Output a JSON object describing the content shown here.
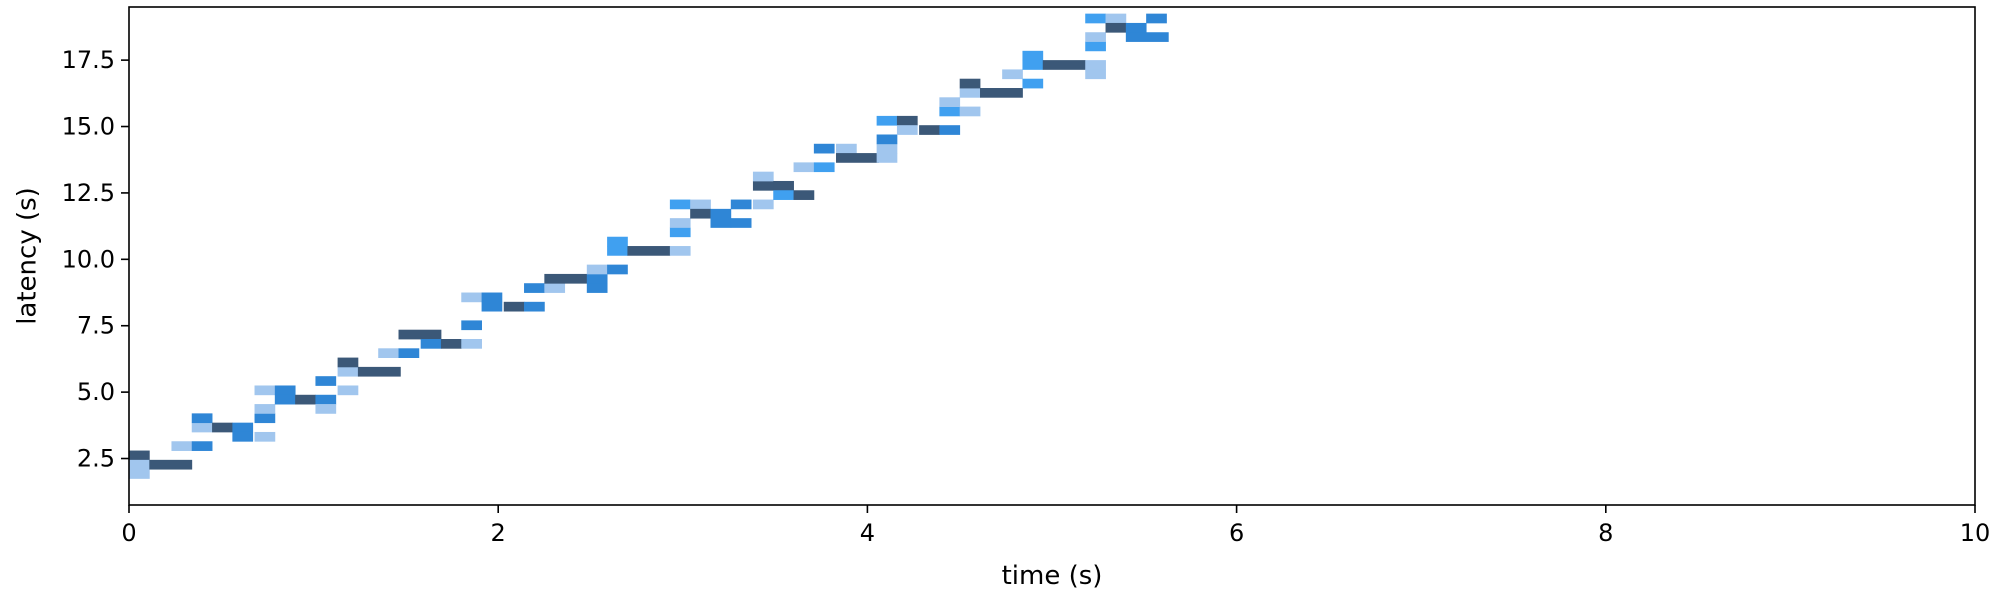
{
  "chart_data": {
    "type": "heatmap",
    "title": "",
    "xlabel": "time (s)",
    "ylabel": "latency (s)",
    "xlim": [
      0,
      10
    ],
    "ylim": [
      0.75,
      19.5
    ],
    "x_ticks": [
      {
        "value": 0,
        "label": "0"
      },
      {
        "value": 2,
        "label": "2"
      },
      {
        "value": 4,
        "label": "4"
      },
      {
        "value": 6,
        "label": "6"
      },
      {
        "value": 8,
        "label": "8"
      },
      {
        "value": 10,
        "label": "10"
      }
    ],
    "y_ticks": [
      {
        "value": 2.5,
        "label": "2.5"
      },
      {
        "value": 5.0,
        "label": "5.0"
      },
      {
        "value": 7.5,
        "label": "7.5"
      },
      {
        "value": 10.0,
        "label": "10.0"
      },
      {
        "value": 12.5,
        "label": "12.5"
      },
      {
        "value": 15.0,
        "label": "15.0"
      },
      {
        "value": 17.5,
        "label": "17.5"
      }
    ],
    "grid": false,
    "legend": "none",
    "bin_width_s": 0.11,
    "bin_height_s": 0.35,
    "colors": {
      "light": "#a1c6ee",
      "medium": "#40a0f0",
      "strong": "#2f86d6",
      "dark": "#3b5878"
    },
    "cells": [
      {
        "x": 0.0,
        "y": 2.45,
        "w": 0.11,
        "c": "dark"
      },
      {
        "x": 0.0,
        "y": 2.1,
        "w": 0.11,
        "c": "light"
      },
      {
        "x": 0.0,
        "y": 1.75,
        "w": 0.11,
        "c": "light"
      },
      {
        "x": 0.11,
        "y": 2.1,
        "w": 0.23,
        "c": "dark"
      },
      {
        "x": 0.23,
        "y": 2.8,
        "w": 0.11,
        "c": "light"
      },
      {
        "x": 0.34,
        "y": 2.8,
        "w": 0.11,
        "c": "strong"
      },
      {
        "x": 0.34,
        "y": 3.5,
        "w": 0.11,
        "c": "light"
      },
      {
        "x": 0.34,
        "y": 3.85,
        "w": 0.11,
        "c": "strong"
      },
      {
        "x": 0.45,
        "y": 3.5,
        "w": 0.11,
        "c": "dark"
      },
      {
        "x": 0.56,
        "y": 3.5,
        "w": 0.11,
        "c": "strong"
      },
      {
        "x": 0.56,
        "y": 3.15,
        "w": 0.11,
        "c": "strong"
      },
      {
        "x": 0.68,
        "y": 3.15,
        "w": 0.11,
        "c": "light"
      },
      {
        "x": 0.68,
        "y": 3.85,
        "w": 0.11,
        "c": "strong"
      },
      {
        "x": 0.68,
        "y": 4.2,
        "w": 0.11,
        "c": "light"
      },
      {
        "x": 0.68,
        "y": 4.9,
        "w": 0.11,
        "c": "light"
      },
      {
        "x": 0.79,
        "y": 4.9,
        "w": 0.11,
        "c": "strong"
      },
      {
        "x": 0.79,
        "y": 4.55,
        "w": 0.11,
        "c": "strong"
      },
      {
        "x": 0.9,
        "y": 4.55,
        "w": 0.11,
        "c": "dark"
      },
      {
        "x": 1.01,
        "y": 4.55,
        "w": 0.11,
        "c": "strong"
      },
      {
        "x": 1.01,
        "y": 4.2,
        "w": 0.11,
        "c": "light"
      },
      {
        "x": 1.01,
        "y": 5.25,
        "w": 0.11,
        "c": "strong"
      },
      {
        "x": 1.13,
        "y": 4.9,
        "w": 0.11,
        "c": "light"
      },
      {
        "x": 1.13,
        "y": 5.6,
        "w": 0.11,
        "c": "light"
      },
      {
        "x": 1.13,
        "y": 5.95,
        "w": 0.11,
        "c": "dark"
      },
      {
        "x": 1.24,
        "y": 5.6,
        "w": 0.23,
        "c": "dark"
      },
      {
        "x": 1.35,
        "y": 6.3,
        "w": 0.11,
        "c": "light"
      },
      {
        "x": 1.46,
        "y": 6.3,
        "w": 0.11,
        "c": "strong"
      },
      {
        "x": 1.46,
        "y": 7.0,
        "w": 0.23,
        "c": "dark"
      },
      {
        "x": 1.58,
        "y": 6.65,
        "w": 0.11,
        "c": "strong"
      },
      {
        "x": 1.69,
        "y": 6.65,
        "w": 0.11,
        "c": "dark"
      },
      {
        "x": 1.8,
        "y": 6.65,
        "w": 0.11,
        "c": "light"
      },
      {
        "x": 1.8,
        "y": 7.35,
        "w": 0.11,
        "c": "strong"
      },
      {
        "x": 1.8,
        "y": 8.4,
        "w": 0.11,
        "c": "light"
      },
      {
        "x": 1.91,
        "y": 8.4,
        "w": 0.11,
        "c": "strong"
      },
      {
        "x": 1.91,
        "y": 8.05,
        "w": 0.11,
        "c": "strong"
      },
      {
        "x": 2.03,
        "y": 8.05,
        "w": 0.11,
        "c": "dark"
      },
      {
        "x": 2.14,
        "y": 8.05,
        "w": 0.11,
        "c": "strong"
      },
      {
        "x": 2.14,
        "y": 8.75,
        "w": 0.11,
        "c": "strong"
      },
      {
        "x": 2.25,
        "y": 8.75,
        "w": 0.11,
        "c": "light"
      },
      {
        "x": 2.25,
        "y": 9.1,
        "w": 0.23,
        "c": "dark"
      },
      {
        "x": 2.48,
        "y": 8.75,
        "w": 0.11,
        "c": "strong"
      },
      {
        "x": 2.48,
        "y": 9.1,
        "w": 0.11,
        "c": "strong"
      },
      {
        "x": 2.48,
        "y": 9.45,
        "w": 0.11,
        "c": "light"
      },
      {
        "x": 2.59,
        "y": 9.45,
        "w": 0.11,
        "c": "strong"
      },
      {
        "x": 2.59,
        "y": 10.15,
        "w": 0.11,
        "c": "medium"
      },
      {
        "x": 2.59,
        "y": 10.5,
        "w": 0.11,
        "c": "medium"
      },
      {
        "x": 2.7,
        "y": 10.15,
        "w": 0.23,
        "c": "dark"
      },
      {
        "x": 2.93,
        "y": 10.15,
        "w": 0.11,
        "c": "light"
      },
      {
        "x": 2.93,
        "y": 10.85,
        "w": 0.11,
        "c": "medium"
      },
      {
        "x": 2.93,
        "y": 11.2,
        "w": 0.11,
        "c": "light"
      },
      {
        "x": 2.93,
        "y": 11.9,
        "w": 0.11,
        "c": "medium"
      },
      {
        "x": 3.04,
        "y": 11.9,
        "w": 0.11,
        "c": "light"
      },
      {
        "x": 3.04,
        "y": 11.55,
        "w": 0.11,
        "c": "dark"
      },
      {
        "x": 3.15,
        "y": 11.55,
        "w": 0.11,
        "c": "strong"
      },
      {
        "x": 3.15,
        "y": 11.2,
        "w": 0.11,
        "c": "strong"
      },
      {
        "x": 3.26,
        "y": 11.2,
        "w": 0.11,
        "c": "strong"
      },
      {
        "x": 3.26,
        "y": 11.9,
        "w": 0.11,
        "c": "strong"
      },
      {
        "x": 3.38,
        "y": 11.9,
        "w": 0.11,
        "c": "light"
      },
      {
        "x": 3.38,
        "y": 12.6,
        "w": 0.11,
        "c": "dark"
      },
      {
        "x": 3.38,
        "y": 12.95,
        "w": 0.11,
        "c": "light"
      },
      {
        "x": 3.49,
        "y": 12.6,
        "w": 0.11,
        "c": "dark"
      },
      {
        "x": 3.49,
        "y": 12.25,
        "w": 0.11,
        "c": "medium"
      },
      {
        "x": 3.6,
        "y": 12.25,
        "w": 0.11,
        "c": "dark"
      },
      {
        "x": 3.6,
        "y": 13.3,
        "w": 0.11,
        "c": "light"
      },
      {
        "x": 3.71,
        "y": 13.3,
        "w": 0.11,
        "c": "medium"
      },
      {
        "x": 3.71,
        "y": 14.0,
        "w": 0.11,
        "c": "strong"
      },
      {
        "x": 3.83,
        "y": 14.0,
        "w": 0.11,
        "c": "light"
      },
      {
        "x": 3.83,
        "y": 13.65,
        "w": 0.23,
        "c": "dark"
      },
      {
        "x": 4.05,
        "y": 13.65,
        "w": 0.11,
        "c": "light"
      },
      {
        "x": 4.05,
        "y": 14.0,
        "w": 0.11,
        "c": "light"
      },
      {
        "x": 4.05,
        "y": 14.35,
        "w": 0.11,
        "c": "strong"
      },
      {
        "x": 4.05,
        "y": 15.05,
        "w": 0.11,
        "c": "medium"
      },
      {
        "x": 4.16,
        "y": 15.05,
        "w": 0.11,
        "c": "dark"
      },
      {
        "x": 4.16,
        "y": 14.7,
        "w": 0.11,
        "c": "light"
      },
      {
        "x": 4.28,
        "y": 14.7,
        "w": 0.11,
        "c": "dark"
      },
      {
        "x": 4.39,
        "y": 14.7,
        "w": 0.11,
        "c": "strong"
      },
      {
        "x": 4.39,
        "y": 15.4,
        "w": 0.11,
        "c": "medium"
      },
      {
        "x": 4.39,
        "y": 15.75,
        "w": 0.11,
        "c": "light"
      },
      {
        "x": 4.5,
        "y": 15.4,
        "w": 0.11,
        "c": "light"
      },
      {
        "x": 4.5,
        "y": 16.1,
        "w": 0.11,
        "c": "light"
      },
      {
        "x": 4.5,
        "y": 16.45,
        "w": 0.11,
        "c": "dark"
      },
      {
        "x": 4.61,
        "y": 16.1,
        "w": 0.23,
        "c": "dark"
      },
      {
        "x": 4.73,
        "y": 16.8,
        "w": 0.11,
        "c": "light"
      },
      {
        "x": 4.84,
        "y": 16.45,
        "w": 0.11,
        "c": "medium"
      },
      {
        "x": 4.84,
        "y": 17.15,
        "w": 0.11,
        "c": "medium"
      },
      {
        "x": 4.84,
        "y": 17.5,
        "w": 0.11,
        "c": "medium"
      },
      {
        "x": 4.95,
        "y": 17.15,
        "w": 0.23,
        "c": "dark"
      },
      {
        "x": 5.18,
        "y": 16.8,
        "w": 0.11,
        "c": "light"
      },
      {
        "x": 5.18,
        "y": 17.15,
        "w": 0.11,
        "c": "light"
      },
      {
        "x": 5.18,
        "y": 17.85,
        "w": 0.11,
        "c": "medium"
      },
      {
        "x": 5.18,
        "y": 18.2,
        "w": 0.11,
        "c": "light"
      },
      {
        "x": 5.18,
        "y": 18.9,
        "w": 0.11,
        "c": "medium"
      },
      {
        "x": 5.29,
        "y": 18.9,
        "w": 0.11,
        "c": "light"
      },
      {
        "x": 5.29,
        "y": 18.55,
        "w": 0.11,
        "c": "dark"
      },
      {
        "x": 5.4,
        "y": 18.55,
        "w": 0.11,
        "c": "strong"
      },
      {
        "x": 5.4,
        "y": 18.2,
        "w": 0.23,
        "c": "strong"
      },
      {
        "x": 5.51,
        "y": 18.9,
        "w": 0.11,
        "c": "strong"
      }
    ]
  }
}
